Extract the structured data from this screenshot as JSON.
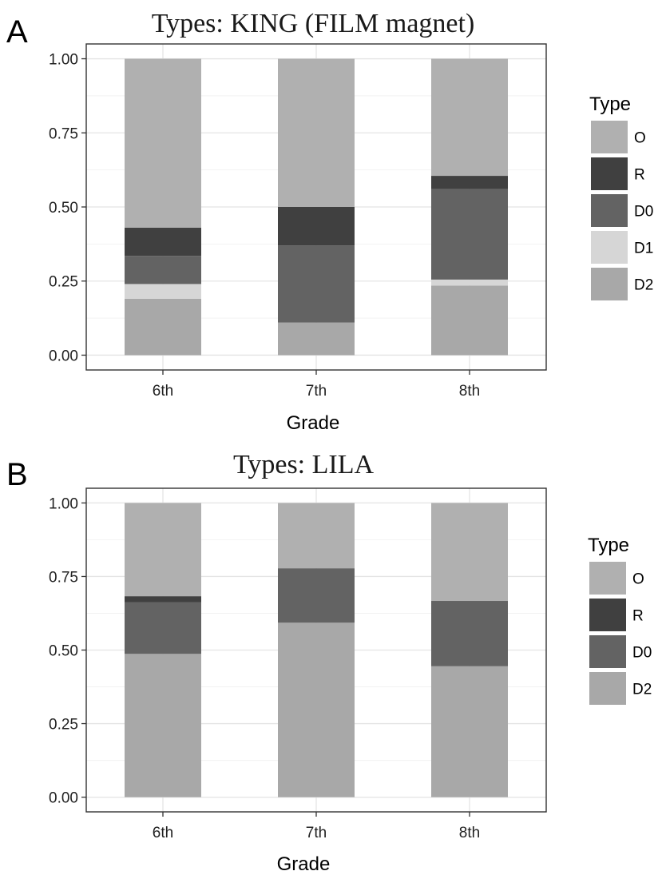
{
  "chart_data": [
    {
      "type": "bar",
      "stacked": true,
      "panel": "A",
      "title": "Types: KING (FILM magnet)",
      "xlabel": "Grade",
      "ylabel": "",
      "ylim": [
        0,
        1
      ],
      "yticks": [
        "0.00",
        "0.25",
        "0.50",
        "0.75",
        "1.00"
      ],
      "categories": [
        "6th",
        "7th",
        "8th"
      ],
      "legend_title": "Type",
      "legend_position": "right",
      "grid": true,
      "series": [
        {
          "name": "D2",
          "color": "#a8a8a8",
          "values": [
            0.19,
            0.11,
            0.235
          ]
        },
        {
          "name": "D1",
          "color": "#d6d6d6",
          "values": [
            0.05,
            0.0,
            0.02
          ]
        },
        {
          "name": "D0",
          "color": "#636363",
          "values": [
            0.095,
            0.26,
            0.305
          ]
        },
        {
          "name": "R",
          "color": "#404040",
          "values": [
            0.095,
            0.13,
            0.045
          ]
        },
        {
          "name": "O",
          "color": "#b0b0b0",
          "values": [
            0.57,
            0.5,
            0.395
          ]
        }
      ],
      "legend_order": [
        "O",
        "R",
        "D0",
        "D1",
        "D2"
      ]
    },
    {
      "type": "bar",
      "stacked": true,
      "panel": "B",
      "title": "Types: LILA",
      "xlabel": "Grade",
      "ylabel": "",
      "ylim": [
        0,
        1
      ],
      "yticks": [
        "0.00",
        "0.25",
        "0.50",
        "0.75",
        "1.00"
      ],
      "categories": [
        "6th",
        "7th",
        "8th"
      ],
      "legend_title": "Type",
      "legend_position": "right",
      "grid": true,
      "series": [
        {
          "name": "D2",
          "color": "#a8a8a8",
          "values": [
            0.487,
            0.593,
            0.445
          ]
        },
        {
          "name": "D0",
          "color": "#636363",
          "values": [
            0.176,
            0.185,
            0.222
          ]
        },
        {
          "name": "R",
          "color": "#404040",
          "values": [
            0.02,
            0.0,
            0.0
          ]
        },
        {
          "name": "O",
          "color": "#b0b0b0",
          "values": [
            0.317,
            0.222,
            0.333
          ]
        }
      ],
      "legend_order": [
        "O",
        "R",
        "D0",
        "D2"
      ]
    }
  ]
}
